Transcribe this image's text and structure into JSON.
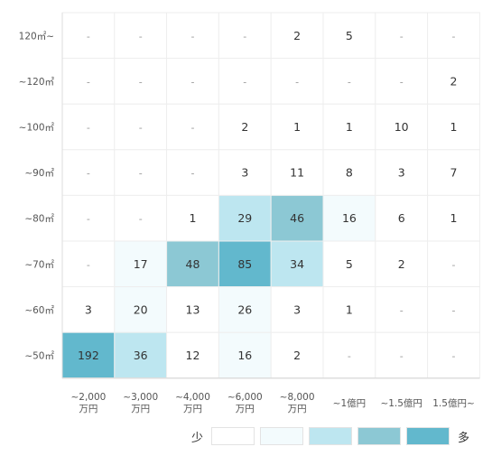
{
  "chart_data": {
    "type": "heatmap",
    "y_categories": [
      "120㎡~",
      "~120㎡",
      "~100㎡",
      "~90㎡",
      "~80㎡",
      "~70㎡",
      "~60㎡",
      "~50㎡"
    ],
    "x_categories": [
      [
        "~2,000",
        "万円"
      ],
      [
        "~3,000",
        "万円"
      ],
      [
        "~4,000",
        "万円"
      ],
      [
        "~6,000",
        "万円"
      ],
      [
        "~8,000",
        "万円"
      ],
      [
        "~1億円"
      ],
      [
        "~1.5億円"
      ],
      [
        "1.5億円~"
      ]
    ],
    "empty_symbol": "-",
    "values": [
      [
        null,
        null,
        null,
        null,
        2,
        5,
        null,
        null
      ],
      [
        null,
        null,
        null,
        null,
        null,
        null,
        null,
        2
      ],
      [
        null,
        null,
        null,
        2,
        1,
        1,
        10,
        1
      ],
      [
        null,
        null,
        null,
        3,
        11,
        8,
        3,
        7
      ],
      [
        null,
        null,
        1,
        29,
        46,
        16,
        6,
        1
      ],
      [
        null,
        17,
        48,
        85,
        34,
        5,
        2,
        null
      ],
      [
        3,
        20,
        13,
        26,
        3,
        1,
        null,
        null
      ],
      [
        192,
        36,
        12,
        16,
        2,
        null,
        null,
        null
      ]
    ],
    "levels": [
      [
        0,
        0,
        0,
        0,
        0,
        0,
        0,
        0
      ],
      [
        0,
        0,
        0,
        0,
        0,
        0,
        0,
        0
      ],
      [
        0,
        0,
        0,
        0,
        0,
        0,
        0,
        0
      ],
      [
        0,
        0,
        0,
        0,
        0,
        0,
        0,
        0
      ],
      [
        0,
        0,
        0,
        2,
        3,
        1,
        0,
        0
      ],
      [
        0,
        1,
        3,
        4,
        2,
        0,
        0,
        0
      ],
      [
        0,
        1,
        0,
        1,
        0,
        0,
        0,
        0
      ],
      [
        4,
        2,
        0,
        1,
        0,
        0,
        0,
        0
      ]
    ],
    "legend": {
      "low_label": "少",
      "high_label": "多",
      "colors": [
        "#ffffff",
        "#f3fbfd",
        "#bde6f0",
        "#8cc8d4",
        "#62b8cd"
      ]
    },
    "grid_color": "#eeeeee",
    "axis_color": "#dddddd"
  }
}
